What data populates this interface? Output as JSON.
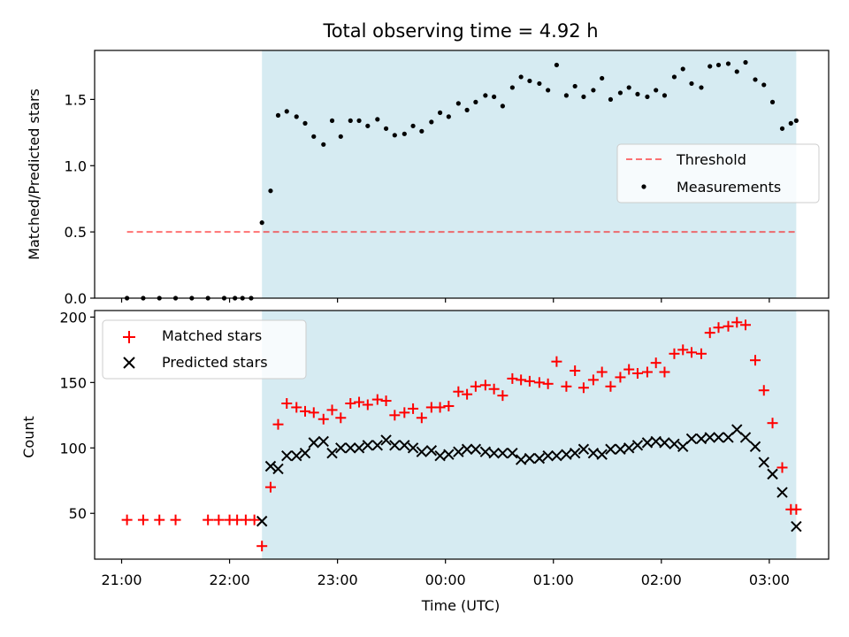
{
  "title": "Total observing time = 4.92 h",
  "colors": {
    "shade": "#add8e6",
    "threshold": "#ff0000",
    "measurements": "#000000",
    "matched": "#ff0000",
    "predicted": "#000000"
  },
  "x_ticks": [
    {
      "label": "21:00",
      "h": 0
    },
    {
      "label": "22:00",
      "h": 1
    },
    {
      "label": "23:00",
      "h": 2
    },
    {
      "label": "00:00",
      "h": 3
    },
    {
      "label": "01:00",
      "h": 4
    },
    {
      "label": "02:00",
      "h": 5
    },
    {
      "label": "03:00",
      "h": 6
    }
  ],
  "chart_data": [
    {
      "type": "scatter",
      "title": "Total observing time = 4.92 h",
      "xlabel": "",
      "ylabel": "Matched/Predicted stars",
      "ylim": [
        0,
        1.87
      ],
      "xlim_hours_after_21": [
        -0.25,
        6.55
      ],
      "y_ticks": [
        "0.0",
        "0.5",
        "1.0",
        "1.5"
      ],
      "shaded_region_hours_after_21": [
        1.3,
        6.25
      ],
      "legend": {
        "position": "center-right",
        "entries": [
          "Threshold",
          "Measurements"
        ]
      },
      "threshold": {
        "name": "Threshold",
        "value": 0.5,
        "x_range_hours_after_21": [
          0.05,
          6.25
        ],
        "style": "dashed"
      },
      "series": [
        {
          "name": "Measurements",
          "x_hours_after_21": [
            0.05,
            0.2,
            0.35,
            0.5,
            0.65,
            0.8,
            0.95,
            1.05,
            1.12,
            1.2,
            1.3,
            1.38,
            1.45,
            1.53,
            1.62,
            1.7,
            1.78,
            1.87,
            1.95,
            2.03,
            2.12,
            2.2,
            2.28,
            2.37,
            2.45,
            2.53,
            2.62,
            2.7,
            2.78,
            2.87,
            2.95,
            3.03,
            3.12,
            3.2,
            3.28,
            3.37,
            3.45,
            3.53,
            3.62,
            3.7,
            3.78,
            3.87,
            3.95,
            4.03,
            4.12,
            4.2,
            4.28,
            4.37,
            4.45,
            4.53,
            4.62,
            4.7,
            4.78,
            4.87,
            4.95,
            5.03,
            5.12,
            5.2,
            5.28,
            5.37,
            5.45,
            5.53,
            5.62,
            5.7,
            5.78,
            5.87,
            5.95,
            6.03,
            6.12,
            6.2,
            6.25
          ],
          "y": [
            0.0,
            0.0,
            0.0,
            0.0,
            0.0,
            0.0,
            0.0,
            0.0,
            0.0,
            0.0,
            0.57,
            0.81,
            1.38,
            1.41,
            1.37,
            1.32,
            1.22,
            1.16,
            1.34,
            1.22,
            1.34,
            1.34,
            1.3,
            1.35,
            1.28,
            1.23,
            1.24,
            1.3,
            1.26,
            1.33,
            1.4,
            1.37,
            1.47,
            1.42,
            1.48,
            1.53,
            1.52,
            1.45,
            1.59,
            1.67,
            1.64,
            1.62,
            1.57,
            1.76,
            1.53,
            1.6,
            1.52,
            1.57,
            1.66,
            1.5,
            1.55,
            1.59,
            1.54,
            1.52,
            1.57,
            1.53,
            1.67,
            1.73,
            1.62,
            1.59,
            1.75,
            1.76,
            1.77,
            1.71,
            1.78,
            1.65,
            1.61,
            1.48,
            1.28,
            1.32,
            1.34
          ]
        }
      ]
    },
    {
      "type": "scatter",
      "xlabel": "Time (UTC)",
      "ylabel": "Count",
      "ylim": [
        15,
        205
      ],
      "xlim_hours_after_21": [
        -0.25,
        6.55
      ],
      "y_ticks": [
        "50",
        "100",
        "150",
        "200"
      ],
      "shaded_region_hours_after_21": [
        1.3,
        6.25
      ],
      "legend": {
        "position": "top-left",
        "entries": [
          "Matched stars",
          "Predicted stars"
        ]
      },
      "series": [
        {
          "name": "Matched stars",
          "marker": "+",
          "x_hours_after_21": [
            0.05,
            0.2,
            0.35,
            0.5,
            0.8,
            0.9,
            1.0,
            1.07,
            1.15,
            1.23,
            1.3,
            1.38,
            1.45,
            1.53,
            1.62,
            1.7,
            1.78,
            1.87,
            1.95,
            2.03,
            2.12,
            2.2,
            2.28,
            2.37,
            2.45,
            2.53,
            2.62,
            2.7,
            2.78,
            2.87,
            2.95,
            3.03,
            3.12,
            3.2,
            3.28,
            3.37,
            3.45,
            3.53,
            3.62,
            3.7,
            3.78,
            3.87,
            3.95,
            4.03,
            4.12,
            4.2,
            4.28,
            4.37,
            4.45,
            4.53,
            4.62,
            4.7,
            4.78,
            4.87,
            4.95,
            5.03,
            5.12,
            5.2,
            5.28,
            5.37,
            5.45,
            5.53,
            5.62,
            5.7,
            5.78,
            5.87,
            5.95,
            6.03,
            6.12,
            6.2,
            6.25
          ],
          "y": [
            45,
            45,
            45,
            45,
            45,
            45,
            45,
            45,
            45,
            45,
            25,
            70,
            118,
            134,
            131,
            128,
            127,
            122,
            129,
            123,
            134,
            135,
            133,
            137,
            136,
            125,
            127,
            130,
            123,
            131,
            131,
            132,
            143,
            141,
            147,
            148,
            145,
            140,
            153,
            152,
            151,
            150,
            149,
            166,
            147,
            159,
            146,
            152,
            158,
            147,
            154,
            160,
            157,
            158,
            165,
            158,
            172,
            175,
            173,
            172,
            188,
            192,
            193,
            196,
            194,
            167,
            144,
            119,
            85,
            53,
            53
          ],
          "color": "#ff0000"
        },
        {
          "name": "Predicted stars",
          "marker": "x",
          "x_hours_after_21": [
            1.3,
            1.38,
            1.45,
            1.53,
            1.62,
            1.7,
            1.78,
            1.87,
            1.95,
            2.03,
            2.12,
            2.2,
            2.28,
            2.37,
            2.45,
            2.53,
            2.62,
            2.7,
            2.78,
            2.87,
            2.95,
            3.03,
            3.12,
            3.2,
            3.28,
            3.37,
            3.45,
            3.53,
            3.62,
            3.7,
            3.78,
            3.87,
            3.95,
            4.03,
            4.12,
            4.2,
            4.28,
            4.37,
            4.45,
            4.53,
            4.62,
            4.7,
            4.78,
            4.87,
            4.95,
            5.03,
            5.12,
            5.2,
            5.28,
            5.37,
            5.45,
            5.53,
            5.62,
            5.7,
            5.78,
            5.87,
            5.95,
            6.03,
            6.12,
            6.25
          ],
          "y": [
            44,
            86,
            84,
            94,
            94,
            96,
            104,
            105,
            96,
            100,
            100,
            100,
            102,
            102,
            106,
            102,
            102,
            100,
            97,
            98,
            94,
            95,
            97,
            99,
            99,
            97,
            96,
            96,
            96,
            91,
            92,
            92,
            94,
            94,
            95,
            96,
            99,
            96,
            95,
            99,
            99,
            100,
            102,
            104,
            105,
            104,
            103,
            101,
            107,
            107,
            108,
            108,
            108,
            114,
            108,
            101,
            89,
            80,
            66,
            40
          ],
          "color": "#000000"
        }
      ]
    }
  ]
}
